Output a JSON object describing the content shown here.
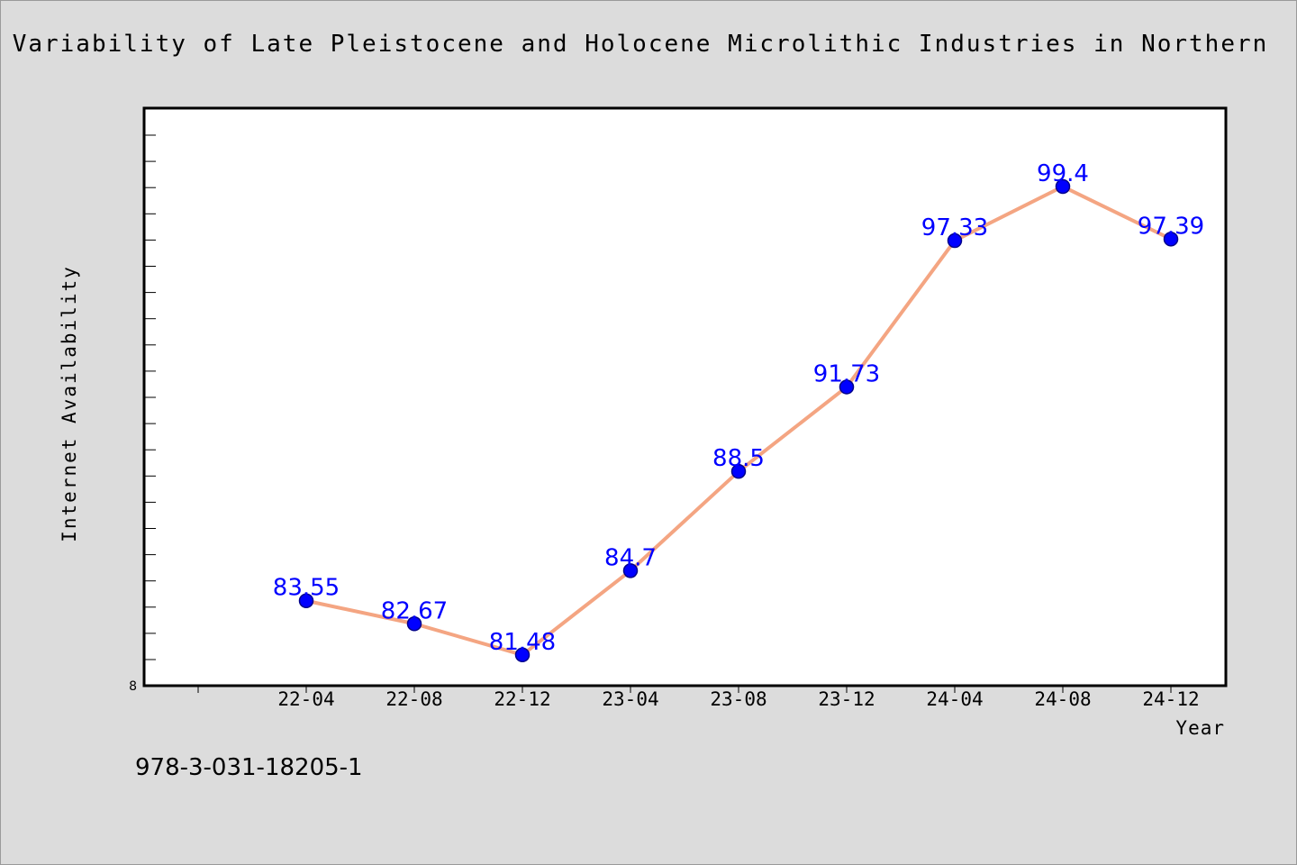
{
  "chart_data": {
    "type": "line",
    "title": "Variability of Late Pleistocene and Holocene Microlithic Industries in Northern",
    "xlabel": "Year",
    "ylabel": "Internet Availability",
    "categories": [
      "22-04",
      "22-08",
      "22-12",
      "23-04",
      "23-08",
      "23-12",
      "24-04",
      "24-08",
      "24-12"
    ],
    "series": [
      {
        "values": [
          83.55,
          82.67,
          81.48,
          84.7,
          88.5,
          91.73,
          97.33,
          99.4,
          97.39
        ],
        "labels": [
          "83.55",
          "82.67",
          "81.48",
          "84.7",
          "88.5",
          "91.73",
          "97.33",
          "99.4",
          "97.39"
        ]
      }
    ],
    "y_tick_labels": [
      "8"
    ],
    "ylim": [
      80.3,
      102.4
    ],
    "grid": false,
    "colors": {
      "line": "#f4a582",
      "marker": "#0000ff",
      "marker_edge": "#00008b",
      "label": "#0000ff"
    }
  },
  "footer": {
    "isbn": "978-3-031-18205-1"
  }
}
